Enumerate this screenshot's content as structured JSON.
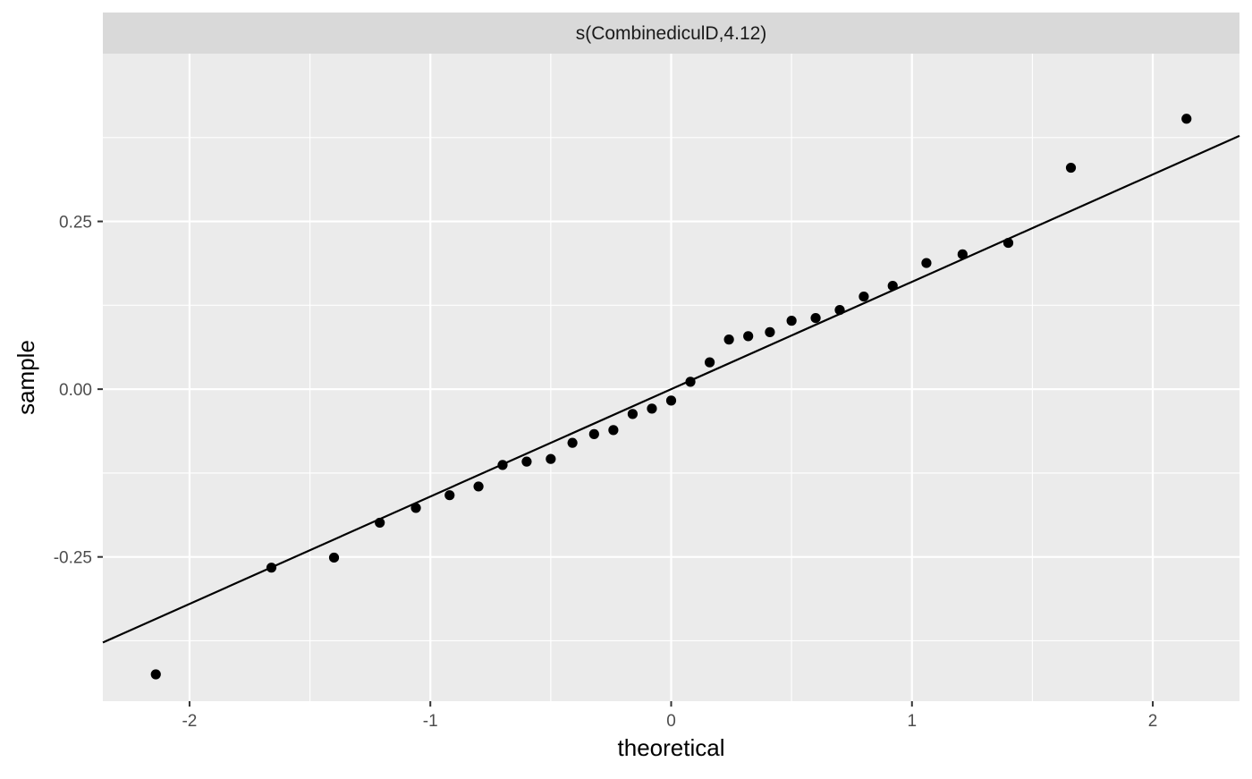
{
  "chart_data": {
    "type": "scatter",
    "facet_title": "s(CombinediculD,4.12)",
    "xlabel": "theoretical",
    "ylabel": "sample",
    "xlim": [
      -2.36,
      2.36
    ],
    "ylim": [
      -0.465,
      0.5
    ],
    "x_ticks": [
      -2,
      -1,
      0,
      1,
      2
    ],
    "x_tick_labels": [
      "-2",
      "-1",
      "0",
      "1",
      "2"
    ],
    "y_ticks": [
      -0.25,
      0.0,
      0.25
    ],
    "y_tick_labels": [
      "-0.25",
      "0.00",
      "0.25"
    ],
    "grid": true,
    "reference_line": {
      "slope": 0.16,
      "intercept": 0.0
    },
    "points": [
      {
        "x": -2.14,
        "y": -0.425
      },
      {
        "x": -1.66,
        "y": -0.266
      },
      {
        "x": -1.4,
        "y": -0.251
      },
      {
        "x": -1.21,
        "y": -0.199
      },
      {
        "x": -1.06,
        "y": -0.177
      },
      {
        "x": -0.92,
        "y": -0.158
      },
      {
        "x": -0.8,
        "y": -0.145
      },
      {
        "x": -0.7,
        "y": -0.113
      },
      {
        "x": -0.6,
        "y": -0.108
      },
      {
        "x": -0.5,
        "y": -0.104
      },
      {
        "x": -0.41,
        "y": -0.08
      },
      {
        "x": -0.32,
        "y": -0.067
      },
      {
        "x": -0.24,
        "y": -0.061
      },
      {
        "x": -0.16,
        "y": -0.037
      },
      {
        "x": -0.08,
        "y": -0.029
      },
      {
        "x": 0.0,
        "y": -0.017
      },
      {
        "x": 0.08,
        "y": 0.011
      },
      {
        "x": 0.16,
        "y": 0.04
      },
      {
        "x": 0.24,
        "y": 0.074
      },
      {
        "x": 0.32,
        "y": 0.079
      },
      {
        "x": 0.41,
        "y": 0.085
      },
      {
        "x": 0.5,
        "y": 0.102
      },
      {
        "x": 0.6,
        "y": 0.106
      },
      {
        "x": 0.7,
        "y": 0.118
      },
      {
        "x": 0.8,
        "y": 0.138
      },
      {
        "x": 0.92,
        "y": 0.154
      },
      {
        "x": 1.06,
        "y": 0.188
      },
      {
        "x": 1.21,
        "y": 0.201
      },
      {
        "x": 1.4,
        "y": 0.218
      },
      {
        "x": 1.66,
        "y": 0.33
      },
      {
        "x": 2.14,
        "y": 0.403
      }
    ],
    "colors": {
      "panel_background": "#ebebeb",
      "strip_background": "#d9d9d9",
      "grid_line": "#ffffff",
      "point": "#000000",
      "reference_line": "#000000"
    }
  }
}
